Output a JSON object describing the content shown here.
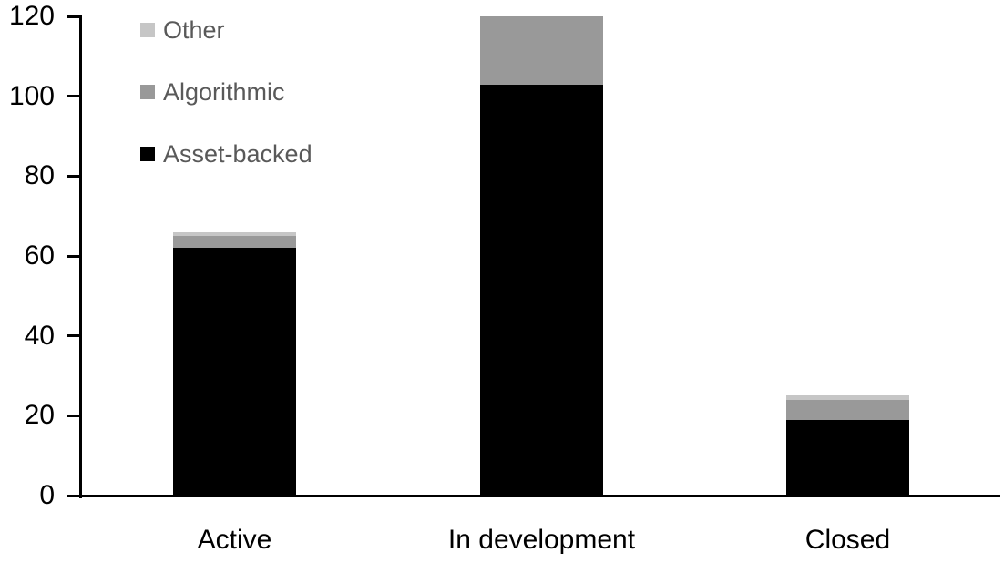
{
  "chart_data": {
    "type": "bar",
    "stacked": true,
    "title": "",
    "xlabel": "",
    "ylabel": "",
    "categories": [
      "Active",
      "In development",
      "Closed"
    ],
    "series": [
      {
        "name": "Asset-backed",
        "color": "#000000",
        "values": [
          62,
          103,
          19
        ]
      },
      {
        "name": "Algorithmic",
        "color": "#999999",
        "values": [
          3,
          17,
          5
        ]
      },
      {
        "name": "Other",
        "color": "#c6c6c6",
        "values": [
          1,
          0,
          1
        ]
      }
    ],
    "totals": [
      66,
      120,
      25
    ],
    "ylim": [
      0,
      120
    ],
    "yticks": [
      0,
      20,
      40,
      60,
      80,
      100,
      120
    ],
    "grid": false,
    "legend_position": "top-left",
    "legend_order_top_to_bottom": [
      "Other",
      "Algorithmic",
      "Asset-backed"
    ],
    "axis_color": "#000000",
    "tick_label_color": "#000000",
    "legend_text_color": "#595959",
    "background_color": "#ffffff"
  }
}
